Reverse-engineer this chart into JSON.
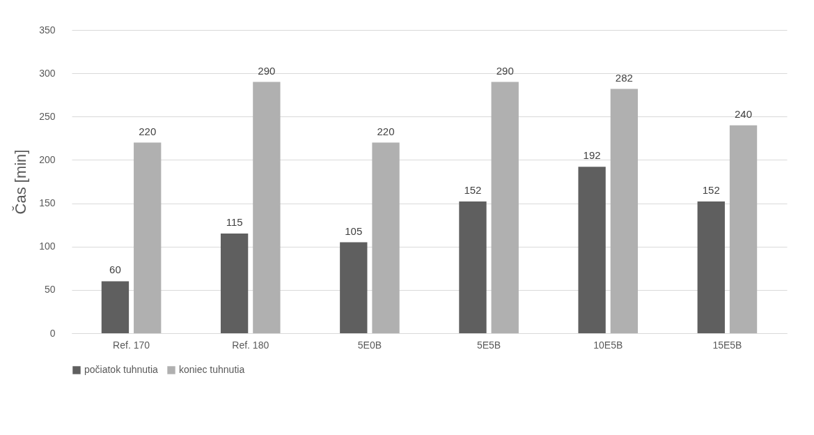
{
  "chart_data": {
    "type": "bar",
    "ylabel": "Čas [min]",
    "categories": [
      "Ref. 170",
      "Ref. 180",
      "5E0B",
      "5E5B",
      "10E5B",
      "15E5B"
    ],
    "series": [
      {
        "name": "počiatok tuhnutia",
        "color": "#5f5f5f",
        "values": [
          60,
          115,
          105,
          152,
          192,
          152
        ]
      },
      {
        "name": "koniec tuhnutia",
        "color": "#b0b0b0",
        "values": [
          220,
          290,
          220,
          290,
          282,
          240
        ]
      }
    ],
    "ylim": [
      0,
      350
    ],
    "yticks": [
      0,
      50,
      100,
      150,
      200,
      250,
      300,
      350
    ],
    "grid": "y",
    "legend": "bottom",
    "data_labels": true
  }
}
